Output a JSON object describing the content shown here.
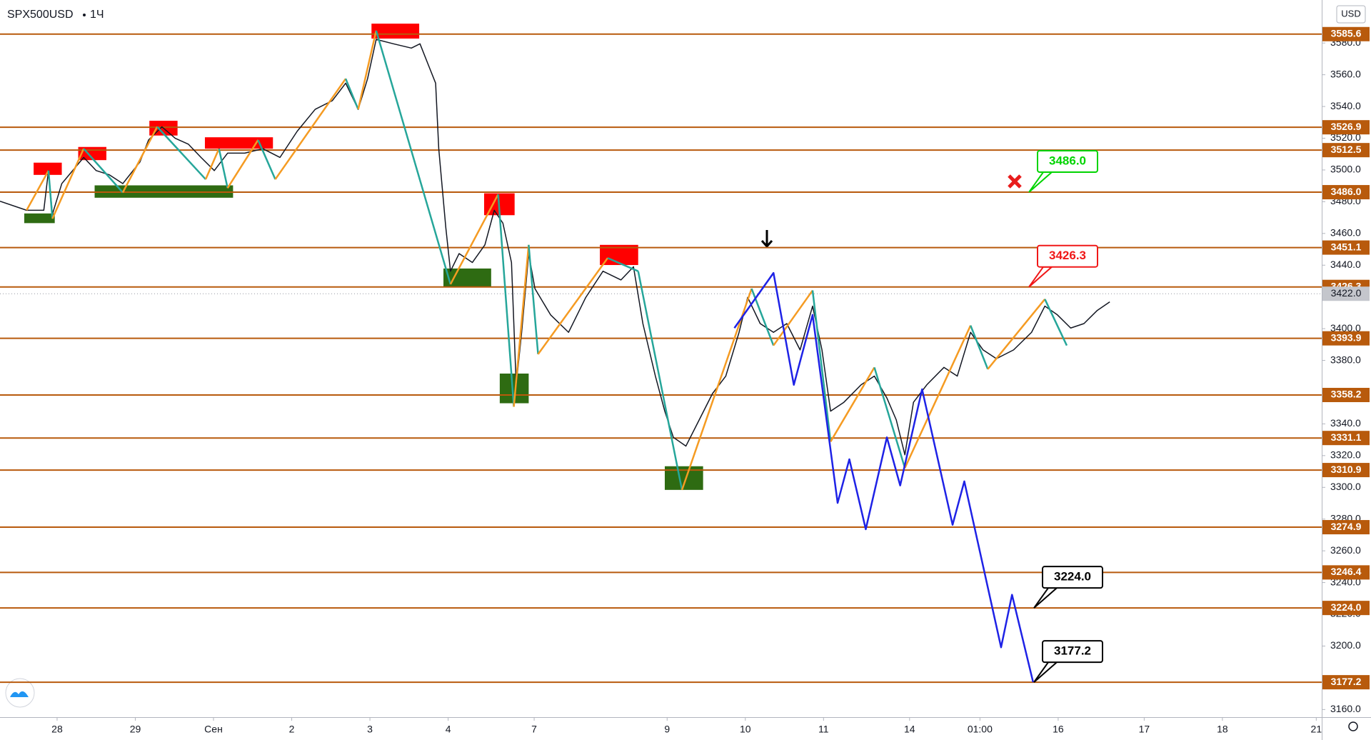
{
  "chart_data": {
    "type": "line",
    "symbol": "SPX500USD",
    "interval": "1Ч",
    "currency": "USD",
    "xlim": [
      -0.73,
      16.17
    ],
    "ylim": [
      3155.2,
      3607.1
    ],
    "xticks": [
      {
        "value": 0,
        "label": "28"
      },
      {
        "value": 1,
        "label": "29"
      },
      {
        "value": 2,
        "label": "Сен"
      },
      {
        "value": 3,
        "label": "2"
      },
      {
        "value": 4,
        "label": "3"
      },
      {
        "value": 5,
        "label": "4"
      },
      {
        "value": 6.1,
        "label": "7"
      },
      {
        "value": 7.8,
        "label": "9"
      },
      {
        "value": 8.8,
        "label": "10"
      },
      {
        "value": 9.8,
        "label": "11"
      },
      {
        "value": 10.9,
        "label": "14"
      },
      {
        "value": 11.8,
        "label": "01:00"
      },
      {
        "value": 12.8,
        "label": "16"
      },
      {
        "value": 13.9,
        "label": "17"
      },
      {
        "value": 14.9,
        "label": "18"
      },
      {
        "value": 16.1,
        "label": "21"
      }
    ],
    "yticks": [
      {
        "value": 3580,
        "label": "3580.0"
      },
      {
        "value": 3560,
        "label": "3560.0"
      },
      {
        "value": 3540,
        "label": "3540.0"
      },
      {
        "value": 3520,
        "label": "3520.0"
      },
      {
        "value": 3500,
        "label": "3500.0"
      },
      {
        "value": 3480,
        "label": "3480.0"
      },
      {
        "value": 3460,
        "label": "3460.0"
      },
      {
        "value": 3440,
        "label": "3440.0"
      },
      {
        "value": 3400,
        "label": "3400.0"
      },
      {
        "value": 3380,
        "label": "3380.0"
      },
      {
        "value": 3340,
        "label": "3340.0"
      },
      {
        "value": 3320,
        "label": "3320.0"
      },
      {
        "value": 3300,
        "label": "3300.0"
      },
      {
        "value": 3280,
        "label": "3280.0"
      },
      {
        "value": 3260,
        "label": "3260.0"
      },
      {
        "value": 3240,
        "label": "3240.0"
      },
      {
        "value": 3220,
        "label": "3220.0"
      },
      {
        "value": 3200,
        "label": "3200.0"
      },
      {
        "value": 3160,
        "label": "3160.0"
      }
    ],
    "price": {
      "color": "#131722",
      "x": [
        -0.73,
        -0.39,
        -0.17,
        -0.11,
        -0.06,
        0.06,
        0.34,
        0.5,
        0.67,
        0.84,
        1.06,
        1.17,
        1.34,
        1.51,
        1.68,
        1.84,
        2.01,
        2.18,
        2.4,
        2.63,
        2.85,
        3.07,
        3.3,
        3.52,
        3.69,
        3.85,
        3.97,
        4.08,
        4.3,
        4.53,
        4.64,
        4.75,
        4.84,
        4.88,
        4.97,
        5.03,
        5.14,
        5.31,
        5.47,
        5.59,
        5.7,
        5.81,
        5.87,
        5.94,
        6.03,
        6.11,
        6.31,
        6.54,
        6.76,
        6.98,
        7.21,
        7.37,
        7.49,
        7.65,
        7.77,
        7.88,
        8.04,
        8.21,
        8.38,
        8.55,
        8.72,
        8.83,
        8.99,
        9.16,
        9.33,
        9.5,
        9.66,
        9.78,
        9.89,
        10.06,
        10.28,
        10.45,
        10.61,
        10.73,
        10.84,
        10.95,
        11.12,
        11.34,
        11.51,
        11.68,
        11.84,
        12.01,
        12.23,
        12.46,
        12.63,
        12.79,
        12.96,
        13.13,
        13.3,
        13.46
      ],
      "values": [
        3480.3,
        3474.6,
        3474.6,
        3499.6,
        3472.1,
        3491.4,
        3507.9,
        3499.6,
        3496.9,
        3491.4,
        3505.1,
        3518.9,
        3527.2,
        3520.0,
        3516.2,
        3507.9,
        3499.6,
        3510.6,
        3510.6,
        3513.4,
        3507.9,
        3524.4,
        3538.2,
        3543.7,
        3554.7,
        3538.2,
        3557.5,
        3582.3,
        3579.5,
        3576.8,
        3579.5,
        3565.8,
        3554.7,
        3513.4,
        3463.8,
        3436.2,
        3447.3,
        3441.7,
        3452.8,
        3474.6,
        3466.5,
        3441.7,
        3364.6,
        3397.7,
        3447.3,
        3425.2,
        3408.7,
        3397.7,
        3419.7,
        3436.2,
        3430.7,
        3439.0,
        3403.2,
        3370.1,
        3348.0,
        3331.5,
        3326.0,
        3342.5,
        3359.1,
        3370.1,
        3397.7,
        3419.7,
        3403.2,
        3397.7,
        3403.2,
        3386.6,
        3414.2,
        3386.6,
        3348.0,
        3353.6,
        3364.6,
        3370.1,
        3356.3,
        3342.5,
        3320.5,
        3353.6,
        3364.6,
        3375.6,
        3370.1,
        3397.7,
        3386.6,
        3381.1,
        3386.6,
        3397.7,
        3414.2,
        3408.7,
        3400.4,
        3403.2,
        3411.5,
        3416.9
      ]
    },
    "zigzag": {
      "up_color": "#f59b22",
      "down_color": "#26a69a",
      "x": [
        -0.39,
        -0.11,
        -0.06,
        0.34,
        0.84,
        1.28,
        1.9,
        2.07,
        2.18,
        2.57,
        2.79,
        3.69,
        3.85,
        4.08,
        5.03,
        5.64,
        5.84,
        6.03,
        6.15,
        7.04,
        7.43,
        7.99,
        8.88,
        9.16,
        9.66,
        9.89,
        10.45,
        10.84,
        11.68,
        11.9,
        12.63,
        12.91
      ],
      "values": [
        3474.6,
        3499.6,
        3469.3,
        3513.4,
        3485.8,
        3527.2,
        3494.1,
        3513.4,
        3488.6,
        3518.9,
        3494.1,
        3557.5,
        3538.2,
        3587.8,
        3428.0,
        3484.7,
        3350.8,
        3452.8,
        3383.9,
        3444.5,
        3436.2,
        3298.4,
        3425.2,
        3389.4,
        3424.1,
        3328.8,
        3375.6,
        3312.2,
        3402.0,
        3374.5,
        3418.6,
        3389.4
      ]
    },
    "projection": {
      "color": "#1e22e6",
      "x": [
        8.66,
        9.16,
        9.42,
        9.66,
        9.98,
        10.13,
        10.34,
        10.61,
        10.78,
        11.06,
        11.45,
        11.6,
        12.07,
        12.21,
        12.48
      ],
      "values": [
        3400.4,
        3435.1,
        3364.6,
        3408.7,
        3290.2,
        3317.7,
        3273.6,
        3331.5,
        3301.2,
        3361.8,
        3276.4,
        3303.8,
        3199.2,
        3232.3,
        3177.2
      ]
    },
    "zones": [
      {
        "color": "#ff0000",
        "x": [
          -0.3,
          0.06
        ],
        "y": [
          3496.9,
          3504.6
        ]
      },
      {
        "color": "#ff0000",
        "x": [
          0.27,
          0.63
        ],
        "y": [
          3506.2,
          3514.5
        ]
      },
      {
        "color": "#ff0000",
        "x": [
          1.18,
          1.54
        ],
        "y": [
          3521.7,
          3531.0
        ]
      },
      {
        "color": "#ff0000",
        "x": [
          1.89,
          2.76
        ],
        "y": [
          3513.4,
          3520.6
        ]
      },
      {
        "color": "#ff0000",
        "x": [
          4.02,
          4.63
        ],
        "y": [
          3582.8,
          3592.2
        ]
      },
      {
        "color": "#ff0000",
        "x": [
          5.46,
          5.85
        ],
        "y": [
          3471.5,
          3485.3
        ]
      },
      {
        "color": "#ff0000",
        "x": [
          6.94,
          7.43
        ],
        "y": [
          3440.1,
          3452.8
        ]
      },
      {
        "color": "#2e6b12",
        "x": [
          -0.42,
          -0.03
        ],
        "y": [
          3466.5,
          3472.6
        ]
      },
      {
        "color": "#2e6b12",
        "x": [
          0.48,
          2.25
        ],
        "y": [
          3482.5,
          3490.3
        ]
      },
      {
        "color": "#2e6b12",
        "x": [
          4.94,
          5.55
        ],
        "y": [
          3426.3,
          3437.9
        ]
      },
      {
        "color": "#2e6b12",
        "x": [
          5.66,
          6.03
        ],
        "y": [
          3353.0,
          3371.7
        ]
      },
      {
        "color": "#2e6b12",
        "x": [
          7.77,
          8.26
        ],
        "y": [
          3298.4,
          3313.3
        ]
      }
    ],
    "levels": {
      "color": "#b85a0c",
      "values": [
        3585.6,
        3526.9,
        3512.5,
        {
          "value": 3486.0,
          "label": "3486.0"
        },
        3451.1,
        3426.3,
        3393.9,
        3358.2,
        3331.1,
        3310.9,
        3274.9,
        3246.4,
        {
          "value": 3224.0,
          "label": "3224.0"
        },
        3177.2
      ]
    },
    "current_price": {
      "value": 3422.0,
      "label": "3422.0"
    },
    "callouts": [
      {
        "price": {
          "value": 3486.0,
          "label": "3486.0"
        },
        "color": "#00d400"
      },
      {
        "price": 3426.3,
        "color": "#f01818"
      },
      {
        "price": {
          "value": 3224.0,
          "label": "3224.0"
        },
        "color": "#000000"
      },
      {
        "price": 3177.2,
        "color": "#000000"
      }
    ]
  }
}
